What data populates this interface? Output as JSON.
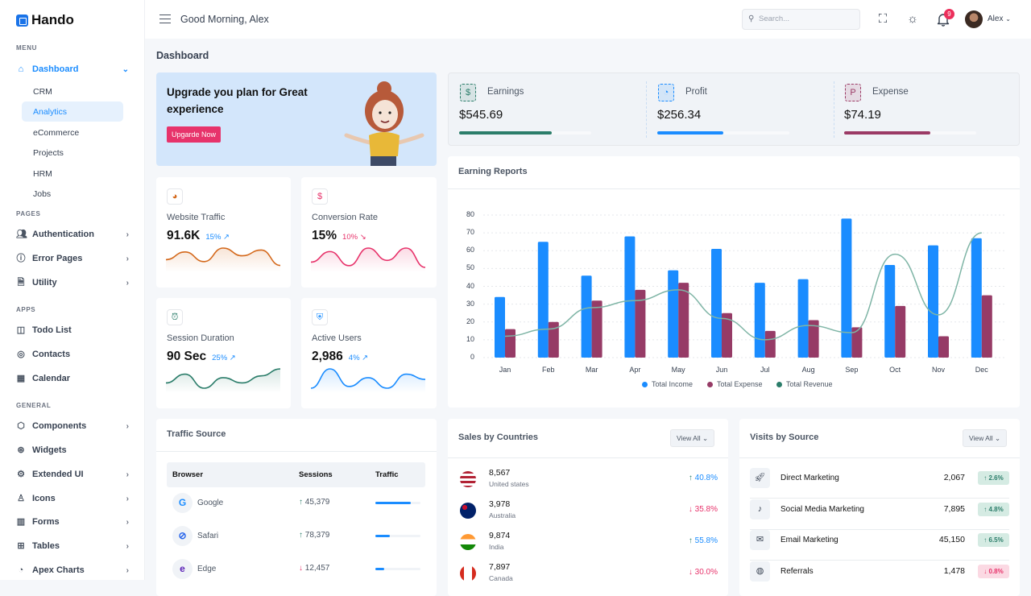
{
  "brand": {
    "name": "Hando"
  },
  "sidebar": {
    "sections": {
      "menu": "MENU",
      "pages": "PAGES",
      "apps": "APPS",
      "general": "GENERAL"
    },
    "dashboard": "Dashboard",
    "sub": [
      "CRM",
      "Analytics",
      "eCommerce",
      "Projects",
      "HRM",
      "Jobs"
    ],
    "active_sub": "Analytics",
    "pages": [
      "Authentication",
      "Error Pages",
      "Utility"
    ],
    "apps": [
      "Todo List",
      "Contacts",
      "Calendar"
    ],
    "general": [
      "Components",
      "Widgets",
      "Extended UI",
      "Icons",
      "Forms",
      "Tables",
      "Apex Charts"
    ]
  },
  "header": {
    "greeting": "Good Morning, Alex",
    "search_placeholder": "Search...",
    "notifications": "9",
    "user": "Alex"
  },
  "page_title": "Dashboard",
  "upgrade": {
    "title": "Upgrade you plan for Great experience",
    "button": "Upgarde Now"
  },
  "stats": [
    {
      "label": "Earnings",
      "value": "$545.69",
      "progress": 0.7,
      "color": "#2b7d6a",
      "icon": "dollar-icon"
    },
    {
      "label": "Profit",
      "value": "$256.34",
      "progress": 0.5,
      "color": "#1a8cff",
      "icon": "pie-chart-icon"
    },
    {
      "label": "Expense",
      "value": "$74.19",
      "progress": 0.65,
      "color": "#9b3a65",
      "icon": "paypal-icon"
    }
  ],
  "minis": [
    {
      "label": "Website Traffic",
      "value": "91.6K",
      "pct": "15%",
      "trend": "up",
      "color": "#d4691c",
      "pct_color": "#1a8cff",
      "spark": [
        4,
        8,
        3,
        10,
        6,
        9,
        1
      ]
    },
    {
      "label": "Conversion Rate",
      "value": "15%",
      "pct": "10%",
      "trend": "down",
      "color": "#e7336b",
      "pct_color": "#e7336b",
      "spark": [
        3,
        9,
        1,
        11,
        4,
        11,
        0
      ]
    },
    {
      "label": "Session Duration",
      "value": "90 Sec",
      "pct": "25%",
      "trend": "up",
      "color": "#2b7d6a",
      "pct_color": "#1a8cff",
      "spark": [
        3,
        8,
        0,
        6,
        3,
        7,
        11
      ]
    },
    {
      "label": "Active Users",
      "value": "2,986",
      "pct": "4%",
      "trend": "up",
      "color": "#1a8cff",
      "pct_color": "#1a8cff",
      "spark": [
        0,
        11,
        1,
        6,
        0,
        8,
        5
      ]
    }
  ],
  "chart_data": {
    "type": "bar",
    "title": "Earning Reports",
    "categories": [
      "Jan",
      "Feb",
      "Mar",
      "Apr",
      "May",
      "Jun",
      "Jul",
      "Aug",
      "Sep",
      "Oct",
      "Nov",
      "Dec"
    ],
    "ylim": [
      0,
      80
    ],
    "yticks": [
      0,
      10,
      20,
      30,
      40,
      50,
      60,
      70,
      80
    ],
    "grid": true,
    "legend": "bottom",
    "series": [
      {
        "name": "Total Income",
        "type": "bar",
        "color": "#1a8cff",
        "values": [
          34,
          65,
          46,
          68,
          49,
          61,
          42,
          44,
          78,
          52,
          63,
          67
        ]
      },
      {
        "name": "Total Expense",
        "type": "bar",
        "color": "#963b66",
        "values": [
          16,
          20,
          32,
          38,
          42,
          25,
          15,
          21,
          17,
          29,
          12,
          35
        ]
      },
      {
        "name": "Total Revenue",
        "type": "line",
        "color": "#2b7d6a",
        "values": [
          12,
          16,
          28,
          32,
          38,
          22,
          10,
          18,
          14,
          58,
          24,
          70
        ]
      }
    ]
  },
  "traffic": {
    "title": "Traffic Source",
    "headers": [
      "Browser",
      "Sessions",
      "Traffic"
    ],
    "rows": [
      {
        "browser": "Google",
        "sessions": "45,379",
        "trend": "up",
        "traffic": 0.78,
        "icon": "G",
        "icon_color": "#1a8cff"
      },
      {
        "browser": "Safari",
        "sessions": "78,379",
        "trend": "up",
        "traffic": 0.32,
        "icon": "⊘",
        "icon_color": "#2563eb"
      },
      {
        "browser": "Edge",
        "sessions": "12,457",
        "trend": "down",
        "traffic": 0.2,
        "icon": "e",
        "icon_color": "#5b21b6"
      }
    ]
  },
  "countries": {
    "title": "Sales by Countries",
    "view_all": "View All",
    "rows": [
      {
        "value": "8,567",
        "country": "United states",
        "pct": "40.8%",
        "trend": "up"
      },
      {
        "value": "3,978",
        "country": "Australia",
        "pct": "35.8%",
        "trend": "down"
      },
      {
        "value": "9,874",
        "country": "India",
        "pct": "55.8%",
        "trend": "up"
      },
      {
        "value": "7,897",
        "country": "Canada",
        "pct": "30.0%",
        "trend": "down"
      }
    ]
  },
  "visits": {
    "title": "Visits by Source",
    "view_all": "View All",
    "rows": [
      {
        "name": "Direct Marketing",
        "value": "2,067",
        "pct": "2.6%",
        "trend": "up",
        "icon": "rocket-icon"
      },
      {
        "name": "Social Media Marketing",
        "value": "7,895",
        "pct": "4.8%",
        "trend": "up",
        "icon": "music-note-icon"
      },
      {
        "name": "Email Marketing",
        "value": "45,150",
        "pct": "6.5%",
        "trend": "up",
        "icon": "mail-icon"
      },
      {
        "name": "Referrals",
        "value": "1,478",
        "pct": "0.8%",
        "trend": "down",
        "icon": "globe-icon"
      }
    ]
  }
}
